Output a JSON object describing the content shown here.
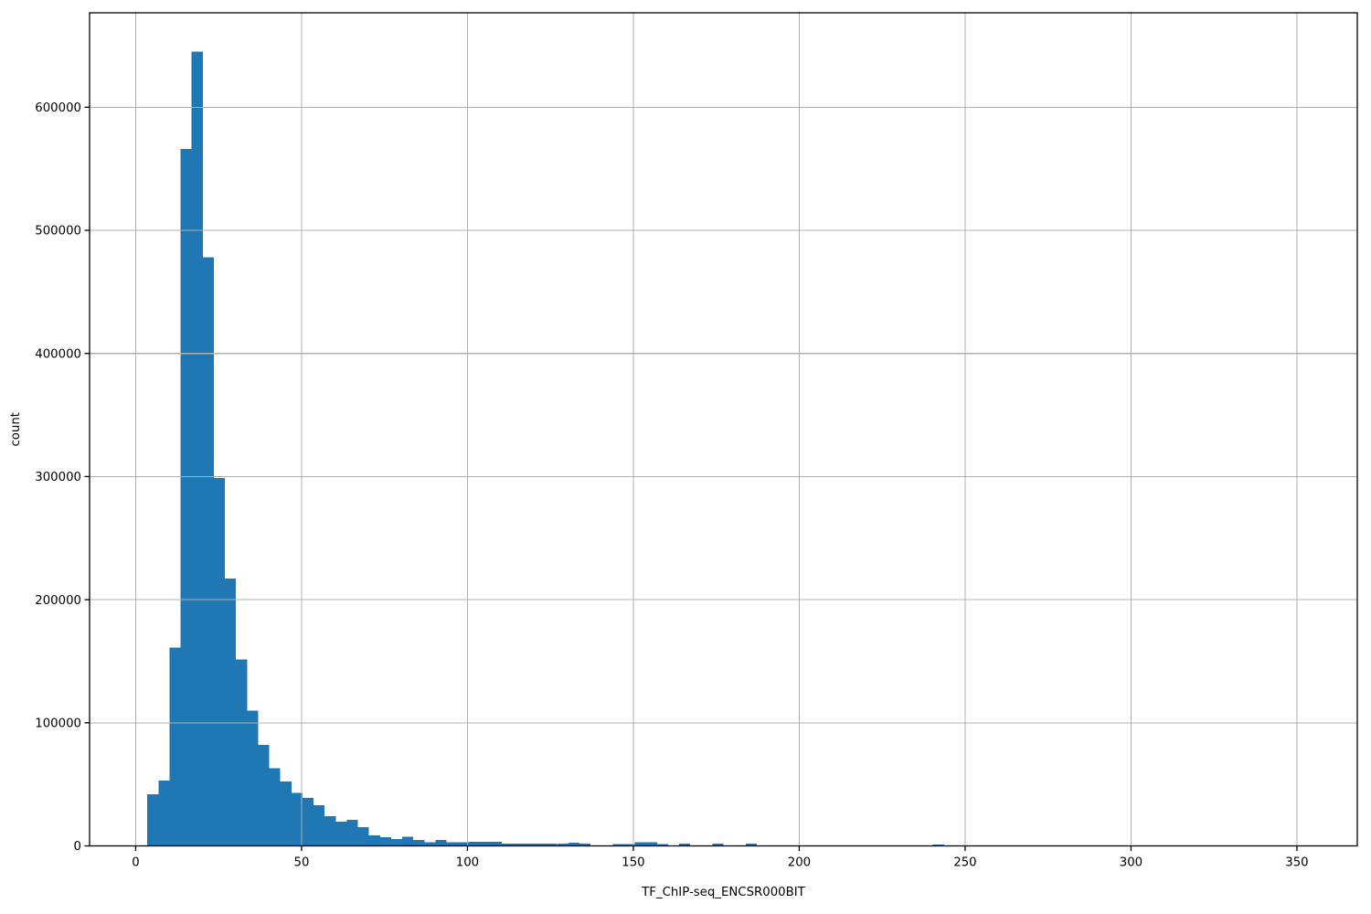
{
  "figure": {
    "background": "#ffffff",
    "title": ""
  },
  "chart_data": {
    "type": "bar",
    "subtype": "histogram",
    "title": "",
    "xlabel": "TF_ChIP-seq_ENCSR000BIT",
    "ylabel": "count",
    "xlim": [
      -13.9,
      368.2
    ],
    "ylim": [
      0,
      676700
    ],
    "xticks": [
      0,
      50,
      100,
      150,
      200,
      250,
      300,
      350
    ],
    "yticks": [
      0,
      100000,
      200000,
      300000,
      400000,
      500000,
      600000
    ],
    "grid": true,
    "legend_position": "none",
    "bar_color": "#1f77b4",
    "grid_color": "#b0b0b0",
    "axis_color": "#000000",
    "bin_width": 3.34,
    "bins": [
      [
        3.5,
        42000
      ],
      [
        6.84,
        53000
      ],
      [
        10.18,
        161000
      ],
      [
        13.52,
        566000
      ],
      [
        16.86,
        645000
      ],
      [
        20.2,
        478000
      ],
      [
        23.54,
        299000
      ],
      [
        26.88,
        217000
      ],
      [
        30.22,
        151500
      ],
      [
        33.56,
        110000
      ],
      [
        36.9,
        82000
      ],
      [
        40.24,
        63000
      ],
      [
        43.58,
        52500
      ],
      [
        46.92,
        43000
      ],
      [
        50.26,
        39000
      ],
      [
        53.6,
        33000
      ],
      [
        56.94,
        24000
      ],
      [
        60.28,
        19500
      ],
      [
        63.62,
        21000
      ],
      [
        66.96,
        15300
      ],
      [
        70.3,
        8400
      ],
      [
        73.64,
        7000
      ],
      [
        76.98,
        5700
      ],
      [
        80.32,
        7400
      ],
      [
        83.66,
        4800
      ],
      [
        87.0,
        2800
      ],
      [
        90.34,
        4800
      ],
      [
        93.68,
        2800
      ],
      [
        97.02,
        2800
      ],
      [
        100.36,
        3500
      ],
      [
        103.7,
        3500
      ],
      [
        107.04,
        3500
      ],
      [
        110.38,
        2000
      ],
      [
        113.72,
        2000
      ],
      [
        117.06,
        2000
      ],
      [
        120.4,
        2000
      ],
      [
        123.74,
        2000
      ],
      [
        127.08,
        2000
      ],
      [
        130.42,
        2700
      ],
      [
        133.76,
        1700
      ],
      [
        143.78,
        1500
      ],
      [
        147.12,
        1500
      ],
      [
        150.46,
        2800
      ],
      [
        153.8,
        2800
      ],
      [
        157.14,
        1500
      ],
      [
        163.82,
        1700
      ],
      [
        173.84,
        1700
      ],
      [
        183.86,
        2000
      ],
      [
        240.3,
        1200
      ]
    ]
  }
}
